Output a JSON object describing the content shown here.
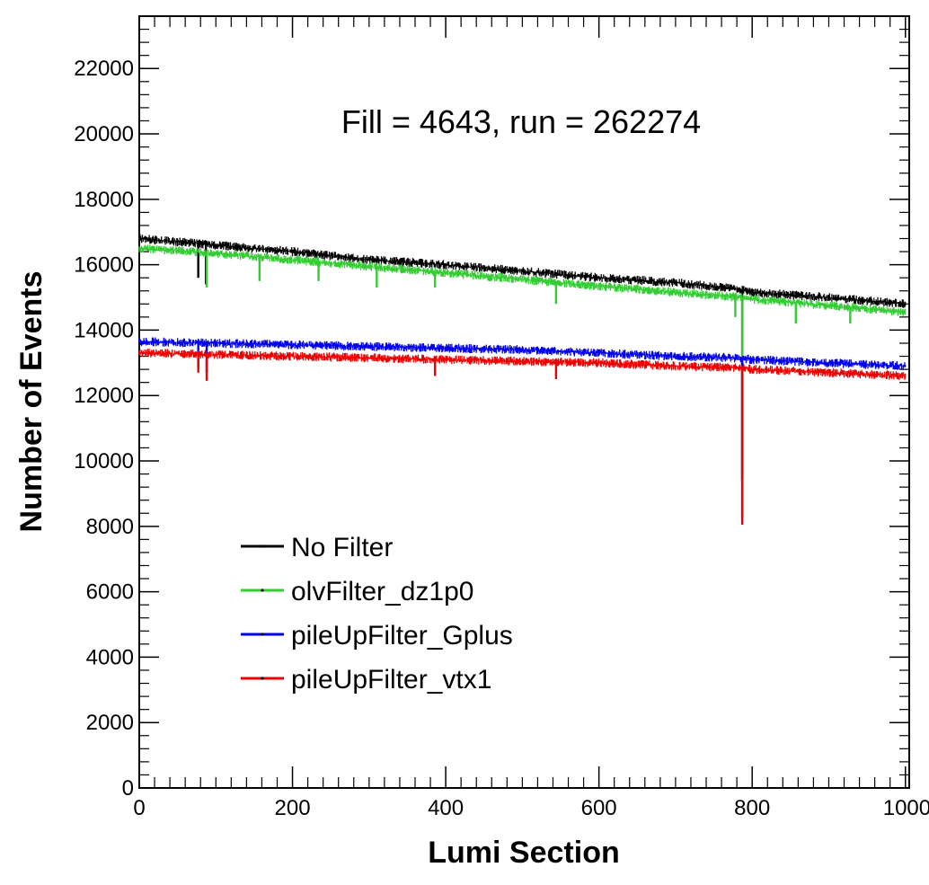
{
  "chart_data": {
    "type": "line",
    "title": "",
    "annotation": "Fill = 4643, run = 262274",
    "xlabel": "Lumi Section",
    "ylabel": "Number of Events",
    "xlim": [
      0,
      1005
    ],
    "ylim": [
      0,
      23600
    ],
    "x_ticks": [
      0,
      200,
      400,
      600,
      800,
      1000
    ],
    "y_ticks": [
      0,
      2000,
      4000,
      6000,
      8000,
      10000,
      12000,
      14000,
      16000,
      18000,
      20000,
      22000
    ],
    "x_tick_labels": [
      "0",
      "200",
      "400",
      "600",
      "800",
      "1000"
    ],
    "y_tick_labels": [
      "0",
      "2000",
      "4000",
      "6000",
      "8000",
      "10000",
      "12000",
      "14000",
      "16000",
      "18000",
      "20000",
      "22000"
    ],
    "grid": false,
    "legend_position": "bottom-left",
    "series": [
      {
        "name": "No Filter",
        "color": "#000000",
        "x": [
          0,
          100,
          200,
          300,
          400,
          500,
          600,
          700,
          785,
          787,
          800,
          900,
          1000
        ],
        "y": [
          16800,
          16600,
          16400,
          16150,
          16000,
          15800,
          15600,
          15450,
          15250,
          9400,
          15150,
          15000,
          14800
        ],
        "dips": [
          [
            77,
            15600
          ],
          [
            87,
            15400
          ],
          [
            787,
            9400
          ]
        ]
      },
      {
        "name": "olvFilter_dz1p0",
        "color": "#33cc33",
        "x": [
          0,
          100,
          200,
          300,
          400,
          500,
          600,
          700,
          785,
          787,
          800,
          900,
          1000
        ],
        "y": [
          16500,
          16350,
          16150,
          15950,
          15750,
          15550,
          15350,
          15150,
          15000,
          9450,
          14950,
          14750,
          14550
        ],
        "dips": [
          [
            88,
            15300
          ],
          [
            157,
            15500
          ],
          [
            234,
            15500
          ],
          [
            310,
            15300
          ],
          [
            386,
            15300
          ],
          [
            544,
            14800
          ],
          [
            778,
            14400
          ],
          [
            787,
            9450
          ],
          [
            857,
            14200
          ],
          [
            928,
            14200
          ]
        ]
      },
      {
        "name": "pileUpFilter_Gplus",
        "color": "#0000ee",
        "x": [
          0,
          100,
          200,
          300,
          400,
          500,
          600,
          700,
          785,
          787,
          800,
          900,
          1000
        ],
        "y": [
          13650,
          13600,
          13550,
          13500,
          13450,
          13400,
          13300,
          13200,
          13150,
          8250,
          13100,
          13000,
          12900
        ],
        "dips": [
          [
            77,
            12850
          ],
          [
            88,
            12700
          ],
          [
            787,
            8250
          ]
        ]
      },
      {
        "name": "pileUpFilter_vtx1",
        "color": "#ee0000",
        "x": [
          0,
          100,
          200,
          300,
          400,
          500,
          600,
          700,
          785,
          787,
          800,
          900,
          1000
        ],
        "y": [
          13300,
          13250,
          13200,
          13150,
          13100,
          13050,
          13000,
          12900,
          12850,
          8050,
          12800,
          12700,
          12600
        ],
        "dips": [
          [
            77,
            12700
          ],
          [
            88,
            12450
          ],
          [
            386,
            12600
          ],
          [
            544,
            12500
          ],
          [
            787,
            8050
          ]
        ]
      }
    ]
  }
}
